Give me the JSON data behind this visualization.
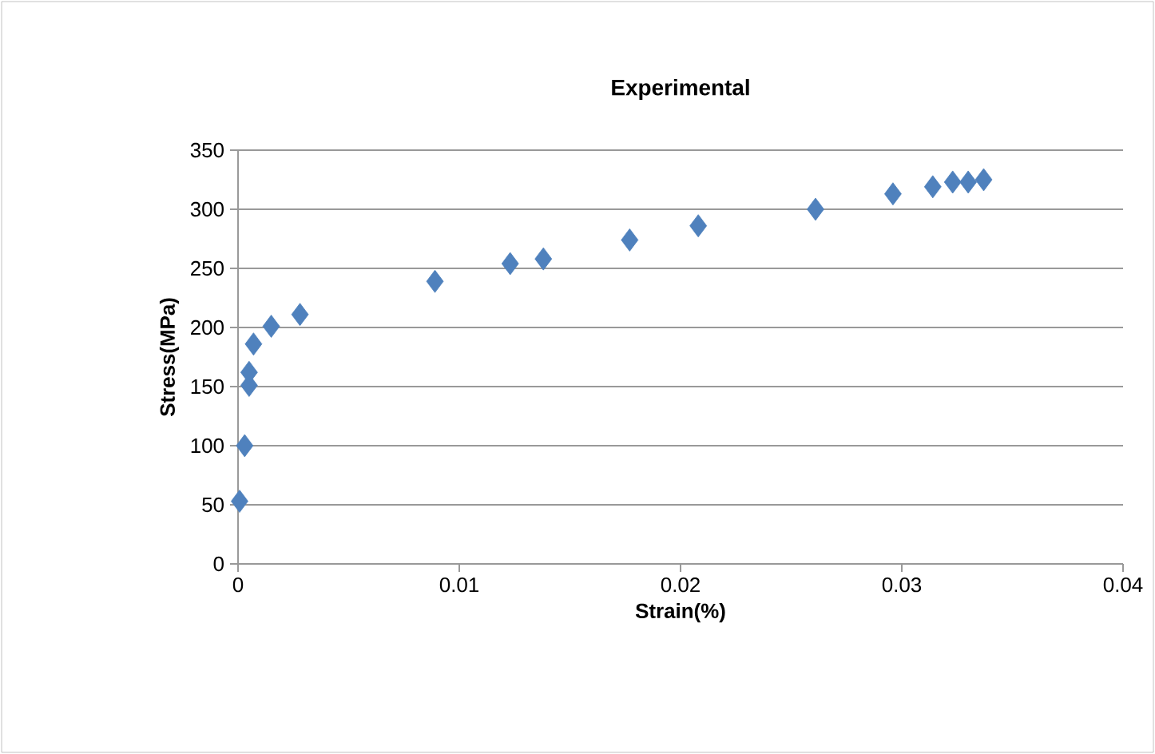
{
  "chart_data": {
    "type": "scatter",
    "title": "Experimental",
    "xlabel": "Strain(%)",
    "ylabel": "Stress(MPa)",
    "x": [
      7e-05,
      0.0003,
      0.0005,
      0.0005,
      0.0007,
      0.0015,
      0.0028,
      0.0089,
      0.0123,
      0.0138,
      0.0177,
      0.0208,
      0.0261,
      0.0296,
      0.0314,
      0.0323,
      0.033,
      0.0337
    ],
    "values": [
      53,
      100,
      151,
      162,
      186,
      201,
      211,
      239,
      254,
      258,
      274,
      286,
      300,
      313,
      319,
      323,
      323,
      325
    ],
    "color": "#4f81bd",
    "marker": "diamond",
    "grid": "y",
    "xlim": [
      0,
      0.04
    ],
    "xticks": [
      0,
      0.01,
      0.02,
      0.03,
      0.04
    ],
    "ylim": [
      0,
      350
    ],
    "yticks": [
      0,
      50,
      100,
      150,
      200,
      250,
      300,
      350
    ]
  }
}
